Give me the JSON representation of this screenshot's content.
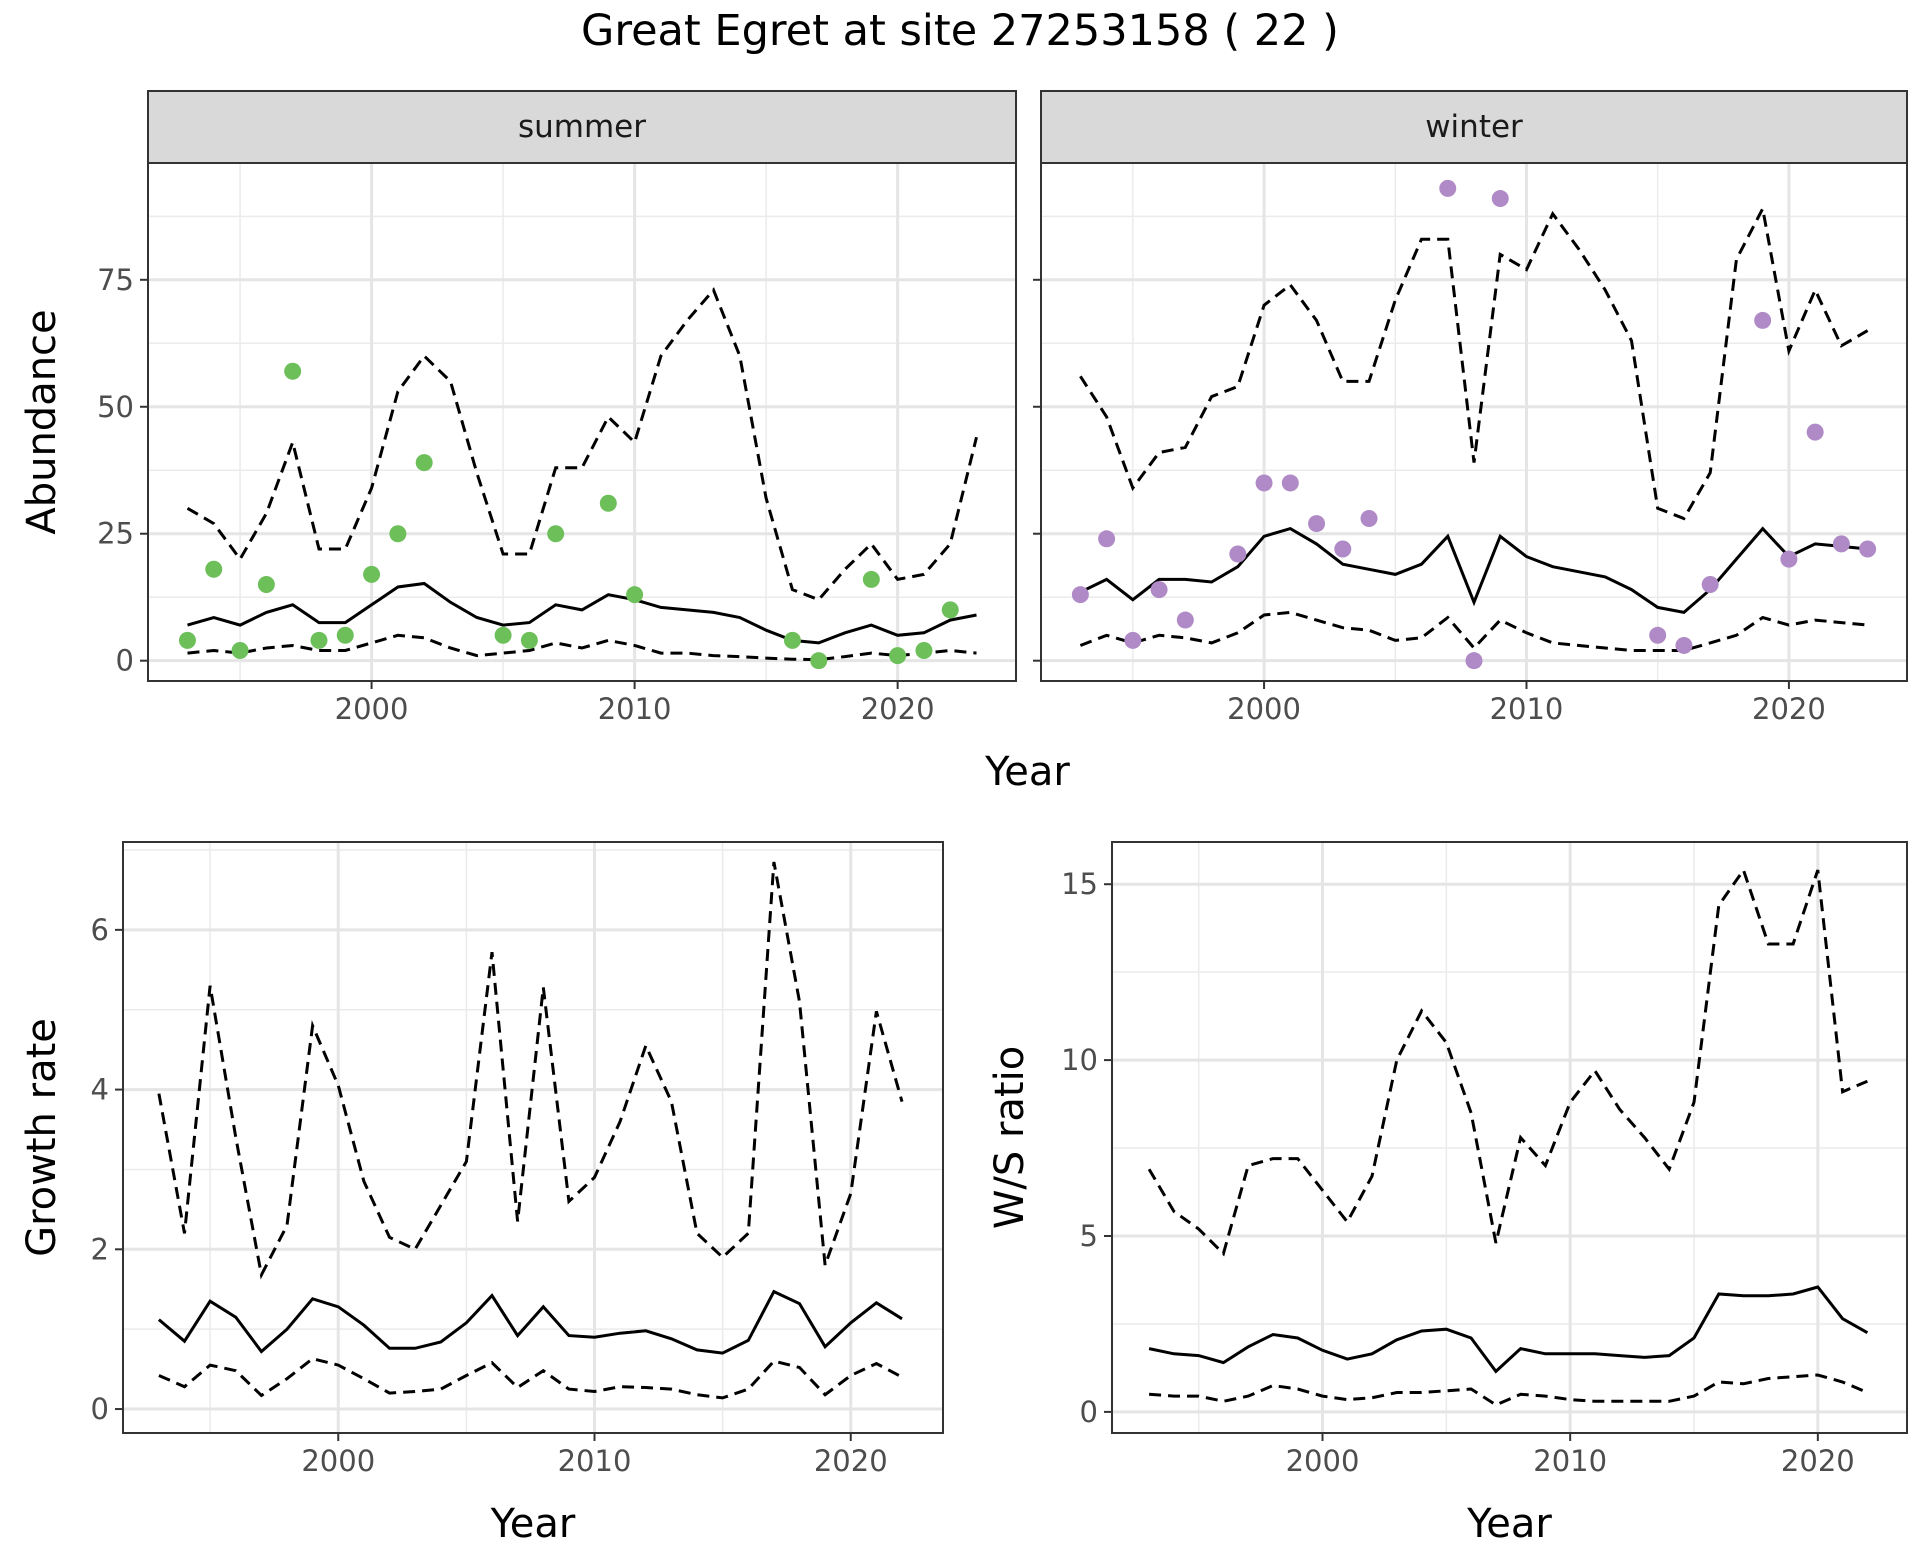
{
  "title": "Great Egret at site 27253158 ( 22 )",
  "chart_data": [
    {
      "id": "abundance",
      "type": "line",
      "facets": [
        {
          "label": "summer",
          "point_color": "#6dbf5a",
          "points": {
            "x": [
              1993,
              1994,
              1995,
              1996,
              1997,
              1998,
              1999,
              2000,
              2001,
              2002,
              2005,
              2006,
              2007,
              2009,
              2010,
              2016,
              2017,
              2019,
              2020,
              2021,
              2022
            ],
            "y": [
              4,
              18,
              2,
              15,
              57,
              4,
              5,
              17,
              25,
              39,
              5,
              4,
              25,
              31,
              13,
              4,
              0,
              16,
              1,
              2,
              10
            ]
          },
          "mean": {
            "x": [
              1993,
              1994,
              1995,
              1996,
              1997,
              1998,
              1999,
              2000,
              2001,
              2002,
              2003,
              2004,
              2005,
              2006,
              2007,
              2008,
              2009,
              2010,
              2011,
              2012,
              2013,
              2014,
              2015,
              2016,
              2017,
              2018,
              2019,
              2020,
              2021,
              2022,
              2023
            ],
            "y": [
              7,
              8.5,
              7,
              9.5,
              11,
              7.5,
              7.5,
              11,
              14.5,
              15.2,
              11.5,
              8.5,
              7,
              7.5,
              11,
              10,
              13,
              12,
              10.5,
              10,
              9.5,
              8.5,
              6,
              4,
              3.5,
              5.5,
              7,
              5,
              5.5,
              8,
              9
            ]
          },
          "lower": {
            "x": [
              1993,
              1994,
              1995,
              1996,
              1997,
              1998,
              1999,
              2000,
              2001,
              2002,
              2003,
              2004,
              2005,
              2006,
              2007,
              2008,
              2009,
              2010,
              2011,
              2012,
              2013,
              2014,
              2015,
              2016,
              2017,
              2018,
              2019,
              2020,
              2021,
              2022,
              2023
            ],
            "y": [
              1.5,
              2,
              1.5,
              2.5,
              3,
              2,
              2,
              3.5,
              5,
              4.5,
              2.5,
              1,
              1.5,
              2,
              3.5,
              2.5,
              4,
              3,
              1.5,
              1.5,
              1,
              0.8,
              0.5,
              0.3,
              0.2,
              0.8,
              1.5,
              1,
              1.5,
              2,
              1.5
            ]
          },
          "upper": {
            "x": [
              1993,
              1994,
              1995,
              1996,
              1997,
              1998,
              1999,
              2000,
              2001,
              2002,
              2003,
              2004,
              2005,
              2006,
              2007,
              2008,
              2009,
              2010,
              2011,
              2012,
              2013,
              2014,
              2015,
              2016,
              2017,
              2018,
              2019,
              2020,
              2021,
              2022,
              2023
            ],
            "y": [
              30,
              27,
              20,
              29,
              43,
              22,
              22,
              34,
              53,
              60,
              55,
              37,
              21,
              21,
              38,
              38,
              48,
              43,
              60,
              67,
              73,
              60,
              32,
              14,
              12,
              18,
              23,
              16,
              17,
              23,
              44
            ]
          }
        },
        {
          "label": "winter",
          "point_color": "#b08ac6",
          "points": {
            "x": [
              1993,
              1994,
              1995,
              1996,
              1997,
              1999,
              2000,
              2001,
              2002,
              2003,
              2004,
              2007,
              2008,
              2009,
              2015,
              2016,
              2017,
              2019,
              2020,
              2021,
              2022,
              2023
            ],
            "y": [
              13,
              24,
              4,
              14,
              8,
              21,
              35,
              35,
              27,
              22,
              28,
              93,
              0,
              91,
              5,
              3,
              15,
              67,
              20,
              45,
              23,
              22
            ]
          },
          "mean": {
            "x": [
              1993,
              1994,
              1995,
              1996,
              1997,
              1998,
              1999,
              2000,
              2001,
              2002,
              2003,
              2004,
              2005,
              2006,
              2007,
              2008,
              2009,
              2010,
              2011,
              2012,
              2013,
              2014,
              2015,
              2016,
              2017,
              2018,
              2019,
              2020,
              2021,
              2022,
              2023
            ],
            "y": [
              13.5,
              16,
              12,
              16,
              16,
              15.5,
              18.5,
              24.5,
              26,
              23,
              19,
              18,
              17,
              19,
              24.5,
              11.5,
              24.5,
              20.5,
              18.5,
              17.5,
              16.5,
              14,
              10.5,
              9.5,
              14,
              20,
              26,
              20.5,
              23,
              22.5,
              22
            ]
          },
          "lower": {
            "x": [
              1993,
              1994,
              1995,
              1996,
              1997,
              1998,
              1999,
              2000,
              2001,
              2002,
              2003,
              2004,
              2005,
              2006,
              2007,
              2008,
              2009,
              2010,
              2011,
              2012,
              2013,
              2014,
              2015,
              2016,
              2017,
              2018,
              2019,
              2020,
              2021,
              2022,
              2023
            ],
            "y": [
              3,
              5,
              3.5,
              5,
              4.5,
              3.5,
              5.5,
              9,
              9.5,
              8,
              6.5,
              6,
              4,
              4.5,
              8.5,
              2.5,
              8,
              5.5,
              3.5,
              3,
              2.5,
              2,
              2,
              2,
              3.5,
              5,
              8.5,
              7,
              8,
              7.5,
              7
            ]
          },
          "upper": {
            "x": [
              1993,
              1994,
              1995,
              1996,
              1997,
              1998,
              1999,
              2000,
              2001,
              2002,
              2003,
              2004,
              2005,
              2006,
              2007,
              2008,
              2009,
              2010,
              2011,
              2012,
              2013,
              2014,
              2015,
              2016,
              2017,
              2018,
              2019,
              2020,
              2021,
              2022,
              2023
            ],
            "y": [
              56,
              48,
              34,
              41,
              42,
              52,
              54,
              70,
              74,
              67,
              55,
              55,
              71,
              83,
              83,
              39,
              80,
              77,
              88,
              81,
              73,
              63,
              30,
              28,
              37,
              79,
              89,
              61,
              73,
              62,
              65
            ]
          }
        }
      ],
      "x_ticks": [
        2000,
        2010,
        2020
      ],
      "y_ticks": [
        0,
        25,
        50,
        75
      ],
      "xlim": [
        1991.5,
        2024.5
      ],
      "ylim": [
        -4,
        98
      ],
      "xlabel": "Year",
      "ylabel": "Abundance",
      "grid": true
    },
    {
      "id": "growth-rate",
      "type": "line",
      "mean": {
        "x": [
          1993,
          1994,
          1995,
          1996,
          1997,
          1998,
          1999,
          2000,
          2001,
          2002,
          2003,
          2004,
          2005,
          2006,
          2007,
          2008,
          2009,
          2010,
          2011,
          2012,
          2013,
          2014,
          2015,
          2016,
          2017,
          2018,
          2019,
          2020,
          2021,
          2022
        ],
        "y": [
          1.12,
          0.85,
          1.35,
          1.15,
          0.72,
          1.0,
          1.38,
          1.28,
          1.05,
          0.76,
          0.76,
          0.84,
          1.08,
          1.42,
          0.92,
          1.28,
          0.92,
          0.9,
          0.95,
          0.98,
          0.88,
          0.74,
          0.7,
          0.86,
          1.47,
          1.32,
          0.78,
          1.08,
          1.33,
          1.13
        ]
      },
      "lower": {
        "x": [
          1993,
          1994,
          1995,
          1996,
          1997,
          1998,
          1999,
          2000,
          2001,
          2002,
          2003,
          2004,
          2005,
          2006,
          2007,
          2008,
          2009,
          2010,
          2011,
          2012,
          2013,
          2014,
          2015,
          2016,
          2017,
          2018,
          2019,
          2020,
          2021,
          2022
        ],
        "y": [
          0.42,
          0.28,
          0.55,
          0.48,
          0.17,
          0.38,
          0.63,
          0.55,
          0.38,
          0.2,
          0.22,
          0.25,
          0.42,
          0.58,
          0.27,
          0.48,
          0.25,
          0.22,
          0.28,
          0.27,
          0.25,
          0.18,
          0.14,
          0.25,
          0.6,
          0.52,
          0.18,
          0.42,
          0.57,
          0.4
        ]
      },
      "upper": {
        "x": [
          1993,
          1994,
          1995,
          1996,
          1997,
          1998,
          1999,
          2000,
          2001,
          2002,
          2003,
          2004,
          2005,
          2006,
          2007,
          2008,
          2009,
          2010,
          2011,
          2012,
          2013,
          2014,
          2015,
          2016,
          2017,
          2018,
          2019,
          2020,
          2021,
          2022
        ],
        "y": [
          3.95,
          2.2,
          5.3,
          3.4,
          1.68,
          2.3,
          4.8,
          4.05,
          2.85,
          2.15,
          2.0,
          2.55,
          3.1,
          5.72,
          2.35,
          5.28,
          2.6,
          2.9,
          3.6,
          4.55,
          3.85,
          2.2,
          1.9,
          2.2,
          6.85,
          5.1,
          1.8,
          2.7,
          4.98,
          3.85
        ]
      },
      "x_ticks": [
        2000,
        2010,
        2020
      ],
      "y_ticks": [
        0,
        2,
        4,
        6
      ],
      "xlim": [
        1991.6,
        2023.6
      ],
      "ylim": [
        -0.3,
        7.1
      ],
      "xlabel": "Year",
      "ylabel": "Growth rate",
      "grid": true
    },
    {
      "id": "ws-ratio",
      "type": "line",
      "mean": {
        "x": [
          1993,
          1994,
          1995,
          1996,
          1997,
          1998,
          1999,
          2000,
          2001,
          2002,
          2003,
          2004,
          2005,
          2006,
          2007,
          2008,
          2009,
          2010,
          2011,
          2012,
          2013,
          2014,
          2015,
          2016,
          2017,
          2018,
          2019,
          2020,
          2021,
          2022
        ],
        "y": [
          1.8,
          1.65,
          1.6,
          1.4,
          1.85,
          2.2,
          2.1,
          1.75,
          1.5,
          1.65,
          2.05,
          2.3,
          2.35,
          2.1,
          1.15,
          1.8,
          1.65,
          1.65,
          1.65,
          1.6,
          1.55,
          1.6,
          2.1,
          3.35,
          3.3,
          3.3,
          3.35,
          3.55,
          2.65,
          2.25
        ]
      },
      "lower": {
        "x": [
          1993,
          1994,
          1995,
          1996,
          1997,
          1998,
          1999,
          2000,
          2001,
          2002,
          2003,
          2004,
          2005,
          2006,
          2007,
          2008,
          2009,
          2010,
          2011,
          2012,
          2013,
          2014,
          2015,
          2016,
          2017,
          2018,
          2019,
          2020,
          2021,
          2022
        ],
        "y": [
          0.5,
          0.45,
          0.45,
          0.3,
          0.45,
          0.75,
          0.65,
          0.45,
          0.35,
          0.4,
          0.55,
          0.55,
          0.6,
          0.65,
          0.2,
          0.5,
          0.45,
          0.35,
          0.3,
          0.3,
          0.3,
          0.3,
          0.45,
          0.85,
          0.8,
          0.95,
          1.0,
          1.05,
          0.85,
          0.55
        ]
      },
      "upper": {
        "x": [
          1993,
          1994,
          1995,
          1996,
          1997,
          1998,
          1999,
          2000,
          2001,
          2002,
          2003,
          2004,
          2005,
          2006,
          2007,
          2008,
          2009,
          2010,
          2011,
          2012,
          2013,
          2014,
          2015,
          2016,
          2017,
          2018,
          2019,
          2020,
          2021,
          2022
        ],
        "y": [
          6.9,
          5.7,
          5.2,
          4.5,
          7.0,
          7.2,
          7.2,
          6.3,
          5.4,
          6.7,
          10.0,
          11.4,
          10.5,
          8.5,
          4.8,
          7.8,
          7.0,
          8.8,
          9.7,
          8.6,
          7.8,
          6.9,
          8.8,
          14.4,
          15.4,
          13.3,
          13.3,
          15.4,
          9.1,
          9.4
        ]
      },
      "x_ticks": [
        2000,
        2010,
        2020
      ],
      "y_ticks": [
        0,
        5,
        10,
        15
      ],
      "xlim": [
        1991.5,
        2023.6
      ],
      "ylim": [
        -0.6,
        16.2
      ],
      "xlabel": "Year",
      "ylabel": "W/S ratio",
      "grid": true
    }
  ]
}
